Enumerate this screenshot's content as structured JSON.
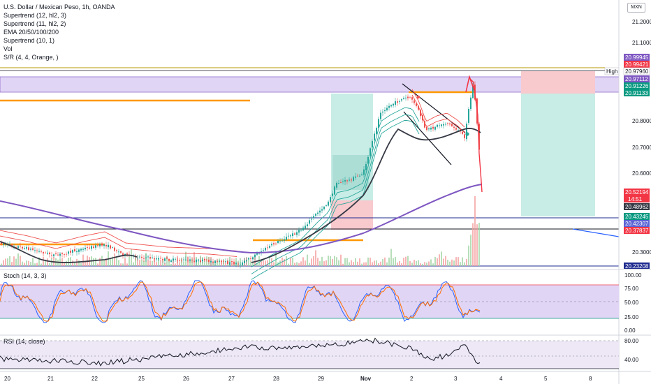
{
  "legend": {
    "title": "U.S. Dollar / Mexican Peso, 1h, OANDA",
    "indicators": [
      "Supertrend (12, hl2, 3)",
      "Supertrend (11, hl2, 2)",
      "EMA 20/50/100/200",
      "Supertrend (10, 1)",
      "Vol",
      "S/R (4, 4, Orange, )"
    ]
  },
  "currency_badge": "MXN",
  "stoch_label": "Stoch (14, 3, 3)",
  "rsi_label": "RSI (14, close)",
  "high_label": "High",
  "colors": {
    "candle_up": "#26a69a",
    "candle_down": "#ef5350",
    "ema": "#363a45",
    "ema_long": "#7e57c2",
    "sr_line": "#ff9800",
    "stoch_fill": "#e1d5f5",
    "rsi_fill": "#ede7f6"
  },
  "price_axis": {
    "ticks": [
      "21.20000",
      "21.10000",
      "20.80000",
      "20.70000",
      "20.60000",
      "20.30000"
    ],
    "badges": [
      {
        "text": "20.99945",
        "color": "#7e57c2"
      },
      {
        "text": "20.99421",
        "color": "#f23645"
      },
      {
        "text": "20.97960",
        "color": "#ffffff",
        "text_color": "#131722"
      },
      {
        "text": "20.97112",
        "color": "#7e57c2"
      },
      {
        "text": "20.91226",
        "color": "#089981"
      },
      {
        "text": "20.91133",
        "color": "#089981"
      },
      {
        "text": "20.52194",
        "color": "#f23645"
      },
      {
        "text": "14:51",
        "color": "#f23645"
      },
      {
        "text": "20.48962",
        "color": "#363a45"
      },
      {
        "text": "20.43245",
        "color": "#089981"
      },
      {
        "text": "20.42307",
        "color": "#5b63d4"
      },
      {
        "text": "20.37837",
        "color": "#f23645"
      },
      {
        "text": "20.23208",
        "color": "#1e2b8f"
      }
    ]
  },
  "stoch_axis": [
    "100.00",
    "75.00",
    "50.00",
    "25.00",
    "0.00"
  ],
  "rsi_axis": [
    "80.00",
    "40.00"
  ],
  "time_axis": [
    "20",
    "21",
    "22",
    "25",
    "26",
    "27",
    "28",
    "29",
    "Nov",
    "2",
    "3",
    "4",
    "5",
    "8"
  ]
}
